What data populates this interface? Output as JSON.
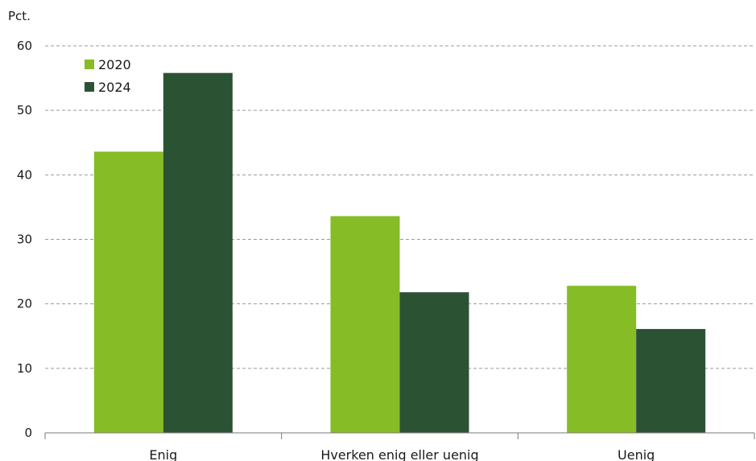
{
  "chart_data": {
    "type": "bar",
    "ylabel": "Pct.",
    "ylim": [
      0,
      60
    ],
    "yticks": [
      0,
      10,
      20,
      30,
      40,
      50,
      60
    ],
    "grid": true,
    "legend_position": "top-left",
    "categories": [
      "Enig",
      "Hverken enig eller uenig",
      "Uenig"
    ],
    "series": [
      {
        "name": "2020",
        "color": "#86bc25",
        "values": [
          43.6,
          33.6,
          22.8
        ]
      },
      {
        "name": "2024",
        "color": "#2c5234",
        "values": [
          55.8,
          21.8,
          16.1
        ]
      }
    ]
  }
}
